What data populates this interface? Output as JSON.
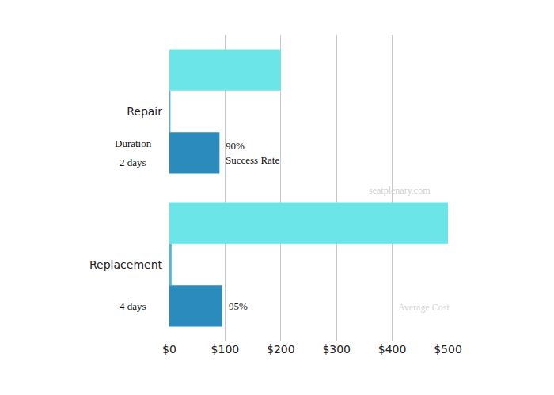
{
  "chart_data": {
    "type": "bar",
    "orientation": "horizontal",
    "categories": [
      "Repair",
      "Replacement"
    ],
    "series": [
      {
        "name": "Average Cost",
        "color": "#6ce5e8",
        "values": [
          200,
          500
        ]
      },
      {
        "name": "Duration",
        "color": "#4cb9d4",
        "values": [
          2,
          4
        ],
        "value_labels": [
          "2 days",
          "4 days"
        ]
      },
      {
        "name": "Success Rate",
        "color": "#2c8bbd",
        "values": [
          90,
          95
        ],
        "value_labels": [
          "90%",
          "95%"
        ]
      }
    ],
    "xlim": [
      0,
      500
    ],
    "xticks": [
      {
        "value": 0,
        "label": "$0"
      },
      {
        "value": 100,
        "label": "$100"
      },
      {
        "value": 200,
        "label": "$200"
      },
      {
        "value": 300,
        "label": "$300"
      },
      {
        "value": 400,
        "label": "$400"
      },
      {
        "value": 500,
        "label": "$500"
      }
    ],
    "grid": true,
    "data_labels": true,
    "annotations": [
      "seatplenary.com"
    ]
  }
}
